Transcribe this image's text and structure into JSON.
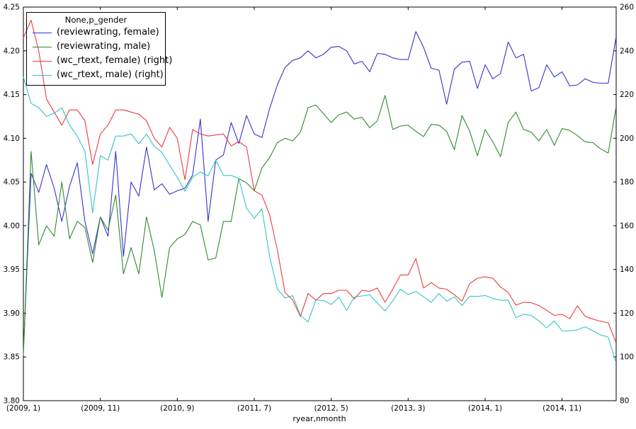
{
  "figure": {
    "background": "#ffffff",
    "frame_color": "#000000",
    "text_color": "#000000"
  },
  "chart_data": {
    "type": "line",
    "title": "",
    "xlabel": "ryear,nmonth",
    "ylabel": "",
    "legend_title": "None,p_gender",
    "legend_position": "upper left",
    "grid": false,
    "n_points": 78,
    "x_frequency": "monthly",
    "x_tick_indices": [
      0,
      10,
      20,
      30,
      40,
      50,
      60,
      70
    ],
    "x_tick_labels": [
      "(2009, 1)",
      "(2009, 11)",
      "(2010, 9)",
      "(2011, 7)",
      "(2012, 5)",
      "(2013, 3)",
      "(2014, 1)",
      "(2014, 11)"
    ],
    "left_axis": {
      "min": 3.8,
      "max": 4.25,
      "tick_labels": [
        "3.80",
        "3.85",
        "3.90",
        "3.95",
        "4.00",
        "4.05",
        "4.10",
        "4.15",
        "4.20",
        "4.25"
      ],
      "tick_values": [
        3.8,
        3.85,
        3.9,
        3.95,
        4.0,
        4.05,
        4.1,
        4.15,
        4.2,
        4.25
      ]
    },
    "right_axis": {
      "min": 80,
      "max": 260,
      "tick_labels": [
        "80",
        "100",
        "120",
        "140",
        "160",
        "180",
        "200",
        "220",
        "240",
        "260"
      ],
      "tick_values": [
        80,
        100,
        120,
        140,
        160,
        180,
        200,
        220,
        240,
        260
      ]
    },
    "series": [
      {
        "name": "(reviewrating, female)",
        "axis": "left",
        "color": "#3434d0",
        "values": [
          3.855,
          4.06,
          4.038,
          4.07,
          4.043,
          4.005,
          4.045,
          4.072,
          4.005,
          3.968,
          4.01,
          3.988,
          4.085,
          3.965,
          4.05,
          4.034,
          4.09,
          4.041,
          4.048,
          4.036,
          4.04,
          4.043,
          4.058,
          4.122,
          4.005,
          4.075,
          4.081,
          4.118,
          4.094,
          4.126,
          4.105,
          4.101,
          4.134,
          4.161,
          4.181,
          4.189,
          4.192,
          4.2,
          4.192,
          4.196,
          4.204,
          4.205,
          4.2,
          4.185,
          4.188,
          4.176,
          4.197,
          4.196,
          4.192,
          4.19,
          4.19,
          4.222,
          4.204,
          4.18,
          4.178,
          4.139,
          4.179,
          4.187,
          4.188,
          4.157,
          4.184,
          4.168,
          4.174,
          4.21,
          4.192,
          4.196,
          4.154,
          4.158,
          4.184,
          4.17,
          4.176,
          4.16,
          4.161,
          4.168,
          4.164,
          4.163,
          4.163,
          4.215
        ]
      },
      {
        "name": "(reviewrating, male)",
        "axis": "left",
        "color": "#2e8b2e",
        "values": [
          3.852,
          4.085,
          3.978,
          4.0,
          3.988,
          4.05,
          3.985,
          4.005,
          3.998,
          3.958,
          4.01,
          3.995,
          4.035,
          3.945,
          3.975,
          3.945,
          4.01,
          3.972,
          3.918,
          3.975,
          3.985,
          3.99,
          4.005,
          4.001,
          3.961,
          3.963,
          4.005,
          4.005,
          4.054,
          4.049,
          4.04,
          4.066,
          4.078,
          4.095,
          4.1,
          4.097,
          4.107,
          4.135,
          4.138,
          4.128,
          4.118,
          4.127,
          4.13,
          4.122,
          4.124,
          4.112,
          4.12,
          4.149,
          4.11,
          4.114,
          4.115,
          4.108,
          4.102,
          4.116,
          4.115,
          4.108,
          4.087,
          4.126,
          4.108,
          4.08,
          4.11,
          4.096,
          4.079,
          4.118,
          4.13,
          4.11,
          4.107,
          4.097,
          4.11,
          4.092,
          4.111,
          4.109,
          4.103,
          4.096,
          4.095,
          4.088,
          4.083,
          4.135
        ]
      },
      {
        "name": "(wc_rtext, female) (right)",
        "axis": "right",
        "color": "#ee3b3b",
        "values": [
          246,
          254,
          240,
          218,
          212,
          206,
          213,
          213,
          208,
          188,
          202,
          206,
          213,
          213,
          212,
          211,
          208,
          200,
          196,
          205,
          200,
          181,
          204,
          202,
          201,
          201.5,
          202,
          196.5,
          198.5,
          196,
          176,
          174,
          165,
          149,
          129.5,
          126,
          118.5,
          129,
          126,
          129,
          129,
          130.5,
          130.5,
          126.5,
          130.5,
          130,
          131.5,
          125,
          131,
          137.5,
          137.5,
          145,
          131.5,
          134,
          131.5,
          131,
          128.5,
          125.5,
          133.5,
          136,
          136.7,
          136,
          132,
          129.5,
          123.7,
          125,
          124.8,
          123.5,
          121.3,
          119,
          119.5,
          117.5,
          123.4,
          118.6,
          117.3,
          116.4,
          115.6,
          106.7
        ]
      },
      {
        "name": "(wc_rtext, male) (right)",
        "axis": "right",
        "color": "#35c4c4",
        "values": [
          228,
          216,
          214,
          210,
          211.5,
          214,
          206,
          201,
          194,
          166,
          192,
          190,
          201,
          201,
          202,
          197.5,
          202,
          196.3,
          193.6,
          187.6,
          182.2,
          175.8,
          182.2,
          184.6,
          182.8,
          190,
          183,
          183,
          181.7,
          168,
          163.4,
          167.7,
          146,
          131,
          127,
          128,
          119,
          116,
          126,
          125.8,
          124,
          127.3,
          121.3,
          127.4,
          127.9,
          128.4,
          124.6,
          121,
          125.7,
          131,
          128.5,
          130,
          127.5,
          125,
          129,
          125.5,
          127.5,
          123.5,
          127.8,
          127.7,
          128.1,
          126.7,
          126,
          126,
          118,
          119.5,
          119,
          116.5,
          113.3,
          116.5,
          112,
          111.9,
          112.4,
          113.8,
          112,
          110.1,
          109,
          97.5
        ]
      }
    ]
  }
}
